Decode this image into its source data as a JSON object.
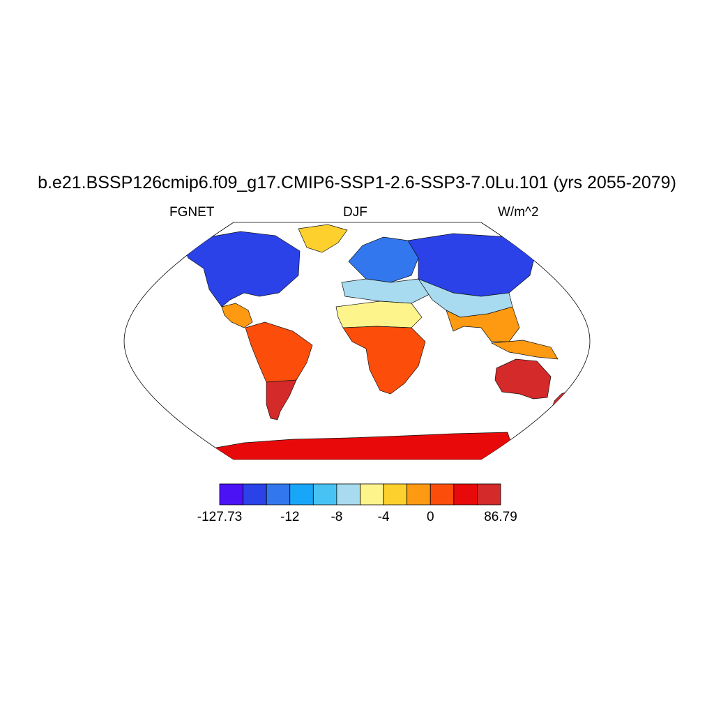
{
  "title": "b.e21.BSSP126cmip6.f09_g17.CMIP6-SSP1-2.6-SSP3-7.0Lu.101 (yrs 2055-2079)",
  "left_string": "FGNET",
  "center_string": "DJF",
  "right_string": "W/m^2",
  "colorbar": {
    "colors": [
      "#4a12f5",
      "#2a42e8",
      "#3377ee",
      "#18a6f8",
      "#48c2f2",
      "#a8daf0",
      "#fef48c",
      "#fdd02d",
      "#fd9a12",
      "#fc4e0a",
      "#e80a0a",
      "#d42a2a"
    ],
    "labels": [
      "-127.73",
      "-12",
      "-8",
      "-4",
      "0",
      "86.79"
    ]
  },
  "map": {
    "projection": "Robinson",
    "region_colors": {
      "north_america": "#2a42e8",
      "greenland": "#fdd02d",
      "central_america": "#fd9a12",
      "south_america": "#fc4e0a",
      "patagonia": "#d42a2a",
      "europe_north": "#3377ee",
      "mediterranean": "#a8daf0",
      "sahara": "#fef48c",
      "africa_south": "#fc4e0a",
      "asia_north": "#2a42e8",
      "asia_south": "#a8daf0",
      "india_seasia": "#fd9a12",
      "australia": "#d42a2a",
      "antarctica": "#e80a0a"
    }
  }
}
